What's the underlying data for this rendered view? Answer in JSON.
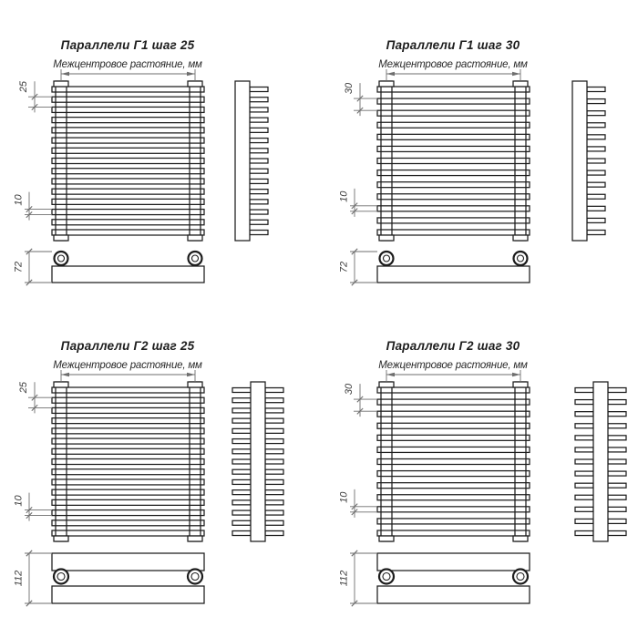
{
  "drawing": {
    "subtitle": "Межцентровое растояние, мм",
    "units": "мм",
    "line_color": "#1c1c1c",
    "dimension_color": "#6e6e6e",
    "variants": [
      {
        "id": "g1-step25",
        "title": "Параллели Г1 шаг 25",
        "step": "25",
        "tube_height": "10",
        "depth": "72",
        "rows": 15,
        "double_sided": false
      },
      {
        "id": "g1-step30",
        "title": "Параллели Г1 шаг 30",
        "step": "30",
        "tube_height": "10",
        "depth": "72",
        "rows": 13,
        "double_sided": false
      },
      {
        "id": "g2-step25",
        "title": "Параллели Г2 шаг 25",
        "step": "25",
        "tube_height": "10",
        "depth": "112",
        "rows": 15,
        "double_sided": true
      },
      {
        "id": "g2-step30",
        "title": "Параллели Г2 шаг 30",
        "step": "30",
        "tube_height": "10",
        "depth": "112",
        "rows": 13,
        "double_sided": true
      }
    ]
  }
}
